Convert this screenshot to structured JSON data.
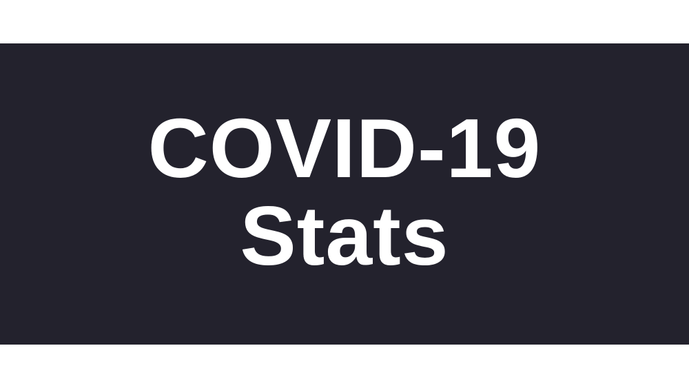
{
  "banner": {
    "title_line_1": "COVID-19",
    "title_line_2": "Stats",
    "background_color": "#23222d",
    "text_color": "#ffffff"
  }
}
